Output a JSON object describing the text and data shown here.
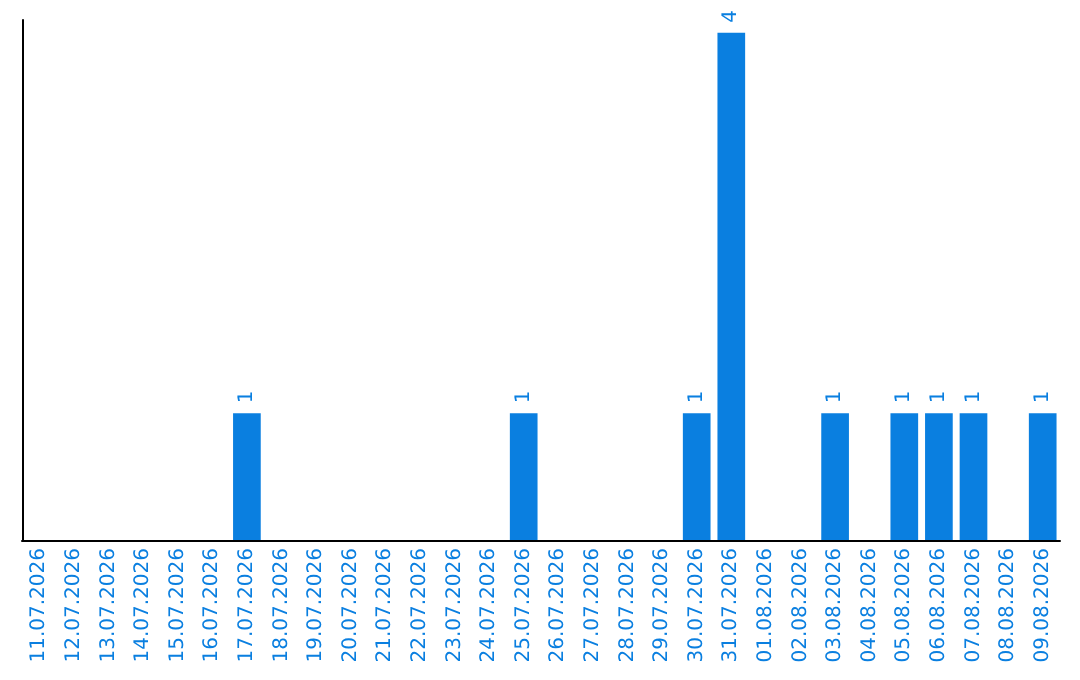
{
  "chart_data": {
    "type": "bar",
    "categories": [
      "11.07.2026",
      "12.07.2026",
      "13.07.2026",
      "14.07.2026",
      "15.07.2026",
      "16.07.2026",
      "17.07.2026",
      "18.07.2026",
      "19.07.2026",
      "20.07.2026",
      "21.07.2026",
      "22.07.2026",
      "23.07.2026",
      "24.07.2026",
      "25.07.2026",
      "26.07.2026",
      "27.07.2026",
      "28.07.2026",
      "29.07.2026",
      "30.07.2026",
      "31.07.2026",
      "01.08.2026",
      "02.08.2026",
      "03.08.2026",
      "04.08.2026",
      "05.08.2026",
      "06.08.2026",
      "07.08.2026",
      "08.08.2026",
      "09.08.2026"
    ],
    "values": [
      0,
      0,
      0,
      0,
      0,
      0,
      1,
      0,
      0,
      0,
      0,
      0,
      0,
      0,
      1,
      0,
      0,
      0,
      0,
      1,
      4,
      0,
      0,
      1,
      0,
      1,
      1,
      1,
      0,
      1
    ],
    "value_labels": [
      null,
      null,
      null,
      null,
      null,
      null,
      "1",
      null,
      null,
      null,
      null,
      null,
      null,
      null,
      "1",
      null,
      null,
      null,
      null,
      "1",
      "4",
      null,
      null,
      "1",
      null,
      "1",
      "1",
      "1",
      null,
      "1"
    ],
    "color": "#0a7fe0",
    "ylim": [
      0,
      4.1
    ],
    "tick_labels": "x",
    "grid": false
  }
}
